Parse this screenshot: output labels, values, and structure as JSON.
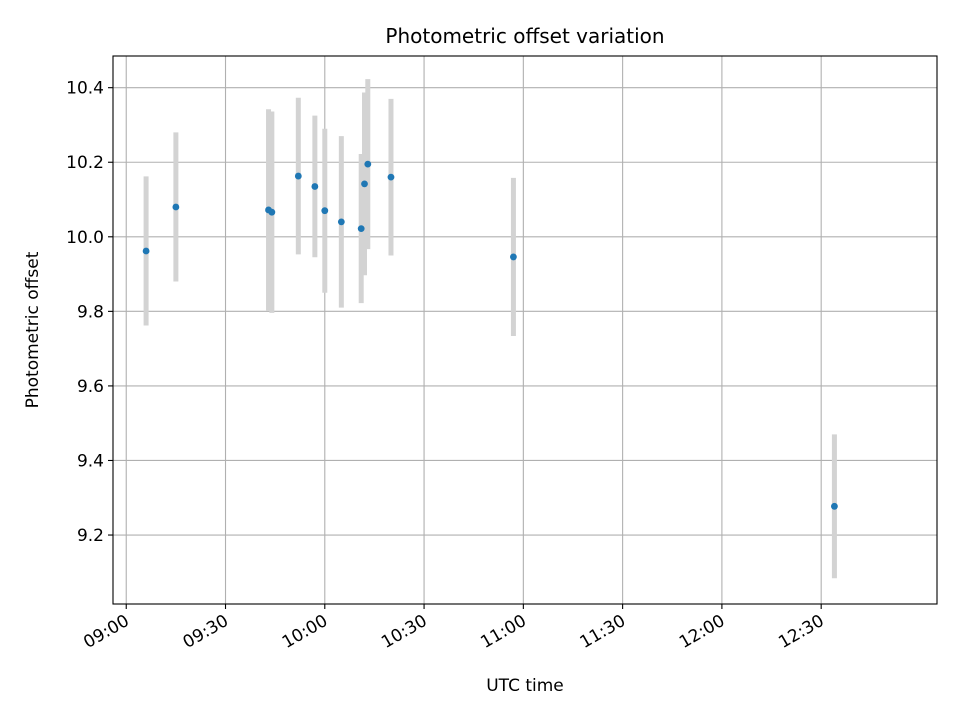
{
  "chart_data": {
    "type": "scatter",
    "title": "Photometric offset variation",
    "xlabel": "UTC time",
    "ylabel": "Photometric offset",
    "x_is_time": true,
    "xlim": [
      "08:56",
      "13:05"
    ],
    "ylim": [
      9.015,
      10.485
    ],
    "x_ticks": [
      "09:00",
      "09:30",
      "10:00",
      "10:30",
      "11:00",
      "11:30",
      "12:00",
      "12:30"
    ],
    "y_ticks": [
      9.2,
      9.4,
      9.6,
      9.8,
      10.0,
      10.2,
      10.4
    ],
    "y_tick_labels": [
      "9.2",
      "9.4",
      "9.6",
      "9.8",
      "10.0",
      "10.2",
      "10.4"
    ],
    "grid": true,
    "series": [
      {
        "x": [
          "09:06",
          "09:15",
          "09:43",
          "09:44",
          "09:52",
          "09:57",
          "10:00",
          "10:05",
          "10:11",
          "10:12",
          "10:13",
          "10:20",
          "10:57",
          "12:34"
        ],
        "y": [
          9.962,
          10.08,
          10.072,
          10.066,
          10.163,
          10.135,
          10.07,
          10.04,
          10.022,
          10.142,
          10.195,
          10.16,
          9.946,
          9.277
        ],
        "yerr": [
          0.2,
          0.2,
          0.27,
          0.27,
          0.21,
          0.19,
          0.22,
          0.23,
          0.2,
          0.245,
          0.228,
          0.21,
          0.212,
          0.193
        ],
        "color": "#1f77b4",
        "errorbar_color": "#d3d3d3"
      }
    ]
  }
}
